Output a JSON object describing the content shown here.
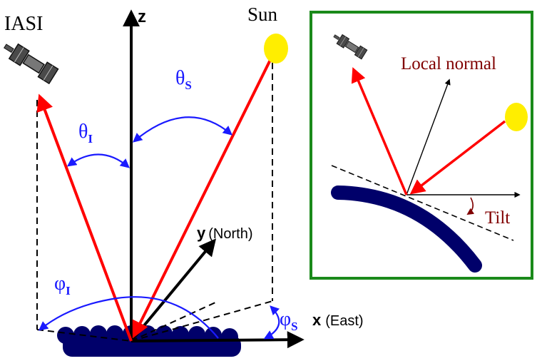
{
  "labels": {
    "iasi": "IASI",
    "sun": "Sun",
    "z_axis": "z",
    "y_axis": "y",
    "y_dir": "(North)",
    "x_axis": "x",
    "x_dir": "(East)",
    "theta_s": "θ",
    "theta_s_sub": "S",
    "theta_i": "θ",
    "theta_i_sub": "I",
    "phi_i": "φ",
    "phi_i_sub": "I",
    "phi_s": "φ",
    "phi_s_sub": "S"
  },
  "inset": {
    "local_normal": "Local normal",
    "tilt": "Tilt"
  },
  "colors": {
    "ray": "#ff0000",
    "angle_arc": "#1a1aff",
    "axis": "#000000",
    "sun": "#ffee00",
    "surface": "#00006a",
    "inset_border": "#1a8a1a",
    "inset_label": "#800000"
  },
  "icons": [
    "satellite-icon",
    "sun-icon"
  ]
}
